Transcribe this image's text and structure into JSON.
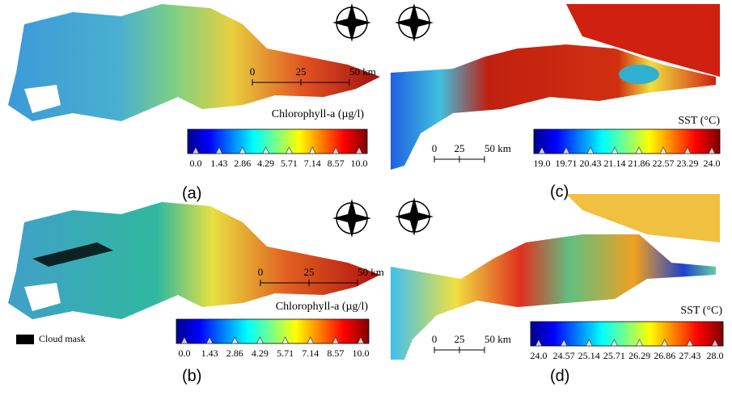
{
  "panels": [
    {
      "label": "(a)",
      "scalebar": [
        "0",
        "25",
        "50 km"
      ],
      "colorbar": {
        "title": "Chlorophyll-a (µg/l)",
        "ticks": [
          "0.0",
          "1.43",
          "2.86",
          "4.29",
          "5.71",
          "7.14",
          "8.57",
          "10.0"
        ]
      }
    },
    {
      "label": "(b)",
      "scalebar": [
        "0",
        "25",
        "50 km"
      ],
      "colorbar": {
        "title": "Chlorophyll-a (µg/l)",
        "ticks": [
          "0.0",
          "1.43",
          "2.86",
          "4.29",
          "5.71",
          "7.14",
          "8.57",
          "10.0"
        ]
      },
      "legend": "Cloud mask"
    },
    {
      "label": "(c)",
      "scalebar": [
        "0",
        "25",
        "50 km"
      ],
      "colorbar": {
        "title": "SST (°C)",
        "ticks": [
          "19.0",
          "19.71",
          "20.43",
          "21.14",
          "21.86",
          "22.57",
          "23.29",
          "24.0"
        ]
      }
    },
    {
      "label": "(d)",
      "scalebar": [
        "0",
        "25",
        "50 km"
      ],
      "colorbar": {
        "title": "SST (°C)",
        "ticks": [
          "24.0",
          "24.57",
          "25.14",
          "25.71",
          "26.29",
          "26.86",
          "27.43",
          "28.0"
        ]
      }
    }
  ]
}
